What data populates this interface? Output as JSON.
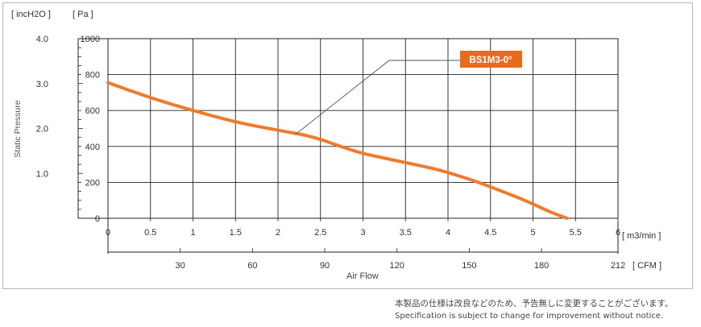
{
  "chart_data": {
    "type": "line",
    "title": "",
    "xlabel": "Air   Flow",
    "ylabel": "Static Pressure",
    "x_unit": "[ m3/min ]",
    "x2_unit": "[ CFM ]",
    "y_unit": "[ Pa ]",
    "y2_unit": "[ incH2O ]",
    "xlim": [
      0,
      6
    ],
    "ylim": [
      0,
      1000
    ],
    "x_ticks": [
      "0",
      "0.5",
      "1",
      "1.5",
      "2",
      "2.5",
      "3",
      "3.5",
      "4",
      "4.5",
      "5",
      "5.5",
      "6"
    ],
    "y_ticks": [
      "0",
      "200",
      "400",
      "600",
      "800",
      "1000"
    ],
    "y2_ticks": [
      {
        "label": "1.0",
        "pa": 250
      },
      {
        "label": "2.0",
        "pa": 500
      },
      {
        "label": "3.0",
        "pa": 750
      },
      {
        "label": "4.0",
        "pa": 1000
      }
    ],
    "x2_ticks": [
      {
        "label": "30",
        "m3min": 0.85
      },
      {
        "label": "60",
        "m3min": 1.7
      },
      {
        "label": "90",
        "m3min": 2.55
      },
      {
        "label": "120",
        "m3min": 3.4
      },
      {
        "label": "150",
        "m3min": 4.25
      },
      {
        "label": "180",
        "m3min": 5.1
      },
      {
        "label": "212",
        "m3min": 6.0
      }
    ],
    "grid": true,
    "series": [
      {
        "name": "BS1M3-0°",
        "color": "#ef7b2c",
        "x": [
          0,
          0.5,
          1,
          1.5,
          2,
          2.3,
          2.5,
          2.8,
          3,
          3.3,
          3.5,
          3.8,
          4,
          4.3,
          4.5,
          4.8,
          5,
          5.2,
          5.4
        ],
        "y": [
          755,
          670,
          600,
          535,
          490,
          465,
          440,
          390,
          360,
          330,
          310,
          280,
          255,
          210,
          175,
          120,
          80,
          35,
          0
        ]
      }
    ],
    "callout": {
      "label": "BS1M3-0°",
      "bg": "#e86a1c",
      "target_x": 2.2,
      "target_y": 465
    }
  },
  "notice": {
    "ja": "本製品の仕様は改良などのため、予告無しに変更することがございます。",
    "en": "Specification is subject to change for improvement without notice."
  }
}
